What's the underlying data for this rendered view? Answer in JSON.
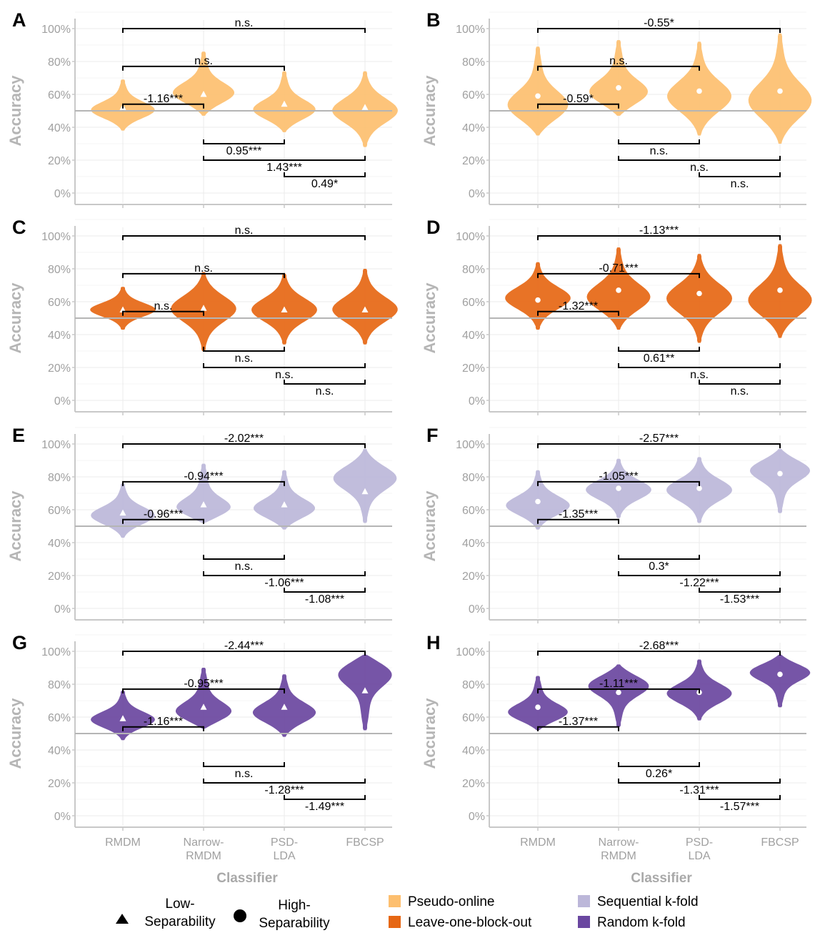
{
  "figure": {
    "y_axis_title": "Accuracy",
    "x_axis_title": "Classifier"
  },
  "legend": {
    "shapes": [
      {
        "shape": "triangle",
        "line1": "Low-",
        "line2": "Separability"
      },
      {
        "shape": "circle",
        "line1": "High-",
        "line2": "Separability"
      }
    ],
    "colors": [
      {
        "label": "Pseudo-online",
        "color": "#fdbf6f"
      },
      {
        "label": "Leave-one-block-out",
        "color": "#e66714"
      },
      {
        "label": "Sequential k-fold",
        "color": "#bcb7d9"
      },
      {
        "label": "Random k-fold",
        "color": "#6a47a0"
      }
    ]
  },
  "chart_data": [
    {
      "type": "violin",
      "panel": "A",
      "scheme": "Pseudo-online",
      "separability": "Low",
      "marker": "triangle",
      "categories": [
        "RMDM",
        "Narrow-RMDM",
        "PSD-LDA",
        "FBCSP"
      ],
      "yticks": [
        "0%",
        "20%",
        "40%",
        "60%",
        "80%",
        "100%"
      ],
      "ylim": [
        0,
        100
      ],
      "chance_line": 50,
      "distributions": [
        {
          "min": 38,
          "max": 69,
          "mode": 50,
          "median": 52
        },
        {
          "min": 47,
          "max": 86,
          "mode": 60,
          "median": 60
        },
        {
          "min": 37,
          "max": 74,
          "mode": 50,
          "median": 54
        },
        {
          "min": 28,
          "max": 74,
          "mode": 50,
          "median": 52
        }
      ],
      "comparisons": [
        {
          "from": "RMDM",
          "to": "FBCSP",
          "label": "n.s."
        },
        {
          "from": "RMDM",
          "to": "PSD-LDA",
          "label": "n.s."
        },
        {
          "from": "RMDM",
          "to": "Narrow-RMDM",
          "label": "-1.16***"
        },
        {
          "from": "Narrow-RMDM",
          "to": "PSD-LDA",
          "label": "0.95***"
        },
        {
          "from": "Narrow-RMDM",
          "to": "FBCSP",
          "label": "1.43***"
        },
        {
          "from": "PSD-LDA",
          "to": "FBCSP",
          "label": "0.49*"
        }
      ]
    },
    {
      "type": "violin",
      "panel": "B",
      "scheme": "Pseudo-online",
      "separability": "High",
      "marker": "circle",
      "categories": [
        "RMDM",
        "Narrow-RMDM",
        "PSD-LDA",
        "FBCSP"
      ],
      "yticks": [
        "0%",
        "20%",
        "40%",
        "60%",
        "80%",
        "100%"
      ],
      "ylim": [
        0,
        100
      ],
      "chance_line": 50,
      "distributions": [
        {
          "min": 35,
          "max": 89,
          "mode": 52,
          "median": 59
        },
        {
          "min": 47,
          "max": 93,
          "mode": 60,
          "median": 64
        },
        {
          "min": 35,
          "max": 92,
          "mode": 58,
          "median": 62
        },
        {
          "min": 30,
          "max": 97,
          "mode": 55,
          "median": 62
        }
      ],
      "comparisons": [
        {
          "from": "RMDM",
          "to": "FBCSP",
          "label": "-0.55*"
        },
        {
          "from": "RMDM",
          "to": "PSD-LDA",
          "label": "n.s."
        },
        {
          "from": "RMDM",
          "to": "Narrow-RMDM",
          "label": "-0.59*"
        },
        {
          "from": "Narrow-RMDM",
          "to": "PSD-LDA",
          "label": "n.s."
        },
        {
          "from": "Narrow-RMDM",
          "to": "FBCSP",
          "label": "n.s."
        },
        {
          "from": "PSD-LDA",
          "to": "FBCSP",
          "label": "n.s."
        }
      ]
    },
    {
      "type": "violin",
      "panel": "C",
      "scheme": "Leave-one-block-out",
      "separability": "Low",
      "marker": "triangle",
      "categories": [
        "RMDM",
        "Narrow-RMDM",
        "PSD-LDA",
        "FBCSP"
      ],
      "yticks": [
        "0%",
        "20%",
        "40%",
        "60%",
        "80%",
        "100%"
      ],
      "ylim": [
        0,
        100
      ],
      "chance_line": 50,
      "distributions": [
        {
          "min": 43,
          "max": 69,
          "mode": 55,
          "median": 55
        },
        {
          "min": 30,
          "max": 78,
          "mode": 56,
          "median": 56
        },
        {
          "min": 34,
          "max": 77,
          "mode": 55,
          "median": 55
        },
        {
          "min": 34,
          "max": 80,
          "mode": 55,
          "median": 55
        }
      ],
      "comparisons": [
        {
          "from": "RMDM",
          "to": "FBCSP",
          "label": "n.s."
        },
        {
          "from": "RMDM",
          "to": "PSD-LDA",
          "label": "n.s."
        },
        {
          "from": "RMDM",
          "to": "Narrow-RMDM",
          "label": "n.s."
        },
        {
          "from": "Narrow-RMDM",
          "to": "PSD-LDA",
          "label": "n.s."
        },
        {
          "from": "Narrow-RMDM",
          "to": "FBCSP",
          "label": "n.s."
        },
        {
          "from": "PSD-LDA",
          "to": "FBCSP",
          "label": "n.s."
        }
      ]
    },
    {
      "type": "violin",
      "panel": "D",
      "scheme": "Leave-one-block-out",
      "separability": "High",
      "marker": "circle",
      "categories": [
        "RMDM",
        "Narrow-RMDM",
        "PSD-LDA",
        "FBCSP"
      ],
      "yticks": [
        "0%",
        "20%",
        "40%",
        "60%",
        "80%",
        "100%"
      ],
      "ylim": [
        0,
        100
      ],
      "chance_line": 50,
      "distributions": [
        {
          "min": 43,
          "max": 84,
          "mode": 62,
          "median": 61
        },
        {
          "min": 43,
          "max": 93,
          "mode": 62,
          "median": 67
        },
        {
          "min": 35,
          "max": 89,
          "mode": 62,
          "median": 65
        },
        {
          "min": 38,
          "max": 95,
          "mode": 60,
          "median": 67
        }
      ],
      "comparisons": [
        {
          "from": "RMDM",
          "to": "FBCSP",
          "label": "-1.13***"
        },
        {
          "from": "RMDM",
          "to": "PSD-LDA",
          "label": "-0.71***"
        },
        {
          "from": "RMDM",
          "to": "Narrow-RMDM",
          "label": "-1.32***"
        },
        {
          "from": "Narrow-RMDM",
          "to": "PSD-LDA",
          "label": "0.61**"
        },
        {
          "from": "Narrow-RMDM",
          "to": "FBCSP",
          "label": "n.s."
        },
        {
          "from": "PSD-LDA",
          "to": "FBCSP",
          "label": "n.s."
        }
      ]
    },
    {
      "type": "violin",
      "panel": "E",
      "scheme": "Sequential k-fold",
      "separability": "Low",
      "marker": "triangle",
      "categories": [
        "RMDM",
        "Narrow-RMDM",
        "PSD-LDA",
        "FBCSP"
      ],
      "yticks": [
        "0%",
        "20%",
        "40%",
        "60%",
        "80%",
        "100%"
      ],
      "ylim": [
        0,
        100
      ],
      "chance_line": 50,
      "distributions": [
        {
          "min": 43,
          "max": 76,
          "mode": 56,
          "median": 58
        },
        {
          "min": 52,
          "max": 88,
          "mode": 60,
          "median": 63
        },
        {
          "min": 48,
          "max": 84,
          "mode": 60,
          "median": 63
        },
        {
          "min": 52,
          "max": 97,
          "mode": 80,
          "median": 71
        }
      ],
      "comparisons": [
        {
          "from": "RMDM",
          "to": "FBCSP",
          "label": "-2.02***"
        },
        {
          "from": "RMDM",
          "to": "PSD-LDA",
          "label": "-0.94***"
        },
        {
          "from": "RMDM",
          "to": "Narrow-RMDM",
          "label": "-0.96***"
        },
        {
          "from": "Narrow-RMDM",
          "to": "PSD-LDA",
          "label": "n.s."
        },
        {
          "from": "Narrow-RMDM",
          "to": "FBCSP",
          "label": "-1.06***"
        },
        {
          "from": "PSD-LDA",
          "to": "FBCSP",
          "label": "-1.08***"
        }
      ]
    },
    {
      "type": "violin",
      "panel": "F",
      "scheme": "Sequential k-fold",
      "separability": "High",
      "marker": "circle",
      "categories": [
        "RMDM",
        "Narrow-RMDM",
        "PSD-LDA",
        "FBCSP"
      ],
      "yticks": [
        "0%",
        "20%",
        "40%",
        "60%",
        "80%",
        "100%"
      ],
      "ylim": [
        0,
        100
      ],
      "chance_line": 50,
      "distributions": [
        {
          "min": 48,
          "max": 84,
          "mode": 62,
          "median": 65
        },
        {
          "min": 55,
          "max": 91,
          "mode": 72,
          "median": 73
        },
        {
          "min": 52,
          "max": 92,
          "mode": 72,
          "median": 73
        },
        {
          "min": 58,
          "max": 97,
          "mode": 85,
          "median": 82
        }
      ],
      "comparisons": [
        {
          "from": "RMDM",
          "to": "FBCSP",
          "label": "-2.57***"
        },
        {
          "from": "RMDM",
          "to": "PSD-LDA",
          "label": "-1.05***"
        },
        {
          "from": "RMDM",
          "to": "Narrow-RMDM",
          "label": "-1.35***"
        },
        {
          "from": "Narrow-RMDM",
          "to": "PSD-LDA",
          "label": "0.3*"
        },
        {
          "from": "Narrow-RMDM",
          "to": "FBCSP",
          "label": "-1.22***"
        },
        {
          "from": "PSD-LDA",
          "to": "FBCSP",
          "label": "-1.53***"
        }
      ]
    },
    {
      "type": "violin",
      "panel": "G",
      "scheme": "Random k-fold",
      "separability": "Low",
      "marker": "triangle",
      "categories": [
        "RMDM",
        "Narrow-RMDM",
        "PSD-LDA",
        "FBCSP"
      ],
      "yticks": [
        "0%",
        "20%",
        "40%",
        "60%",
        "80%",
        "100%"
      ],
      "ylim": [
        0,
        100
      ],
      "chance_line": 50,
      "distributions": [
        {
          "min": 46,
          "max": 76,
          "mode": 58,
          "median": 59
        },
        {
          "min": 53,
          "max": 90,
          "mode": 62,
          "median": 66
        },
        {
          "min": 48,
          "max": 86,
          "mode": 62,
          "median": 66
        },
        {
          "min": 52,
          "max": 98,
          "mode": 88,
          "median": 76
        }
      ],
      "comparisons": [
        {
          "from": "RMDM",
          "to": "FBCSP",
          "label": "-2.44***"
        },
        {
          "from": "RMDM",
          "to": "PSD-LDA",
          "label": "-0.95***"
        },
        {
          "from": "RMDM",
          "to": "Narrow-RMDM",
          "label": "-1.16***"
        },
        {
          "from": "Narrow-RMDM",
          "to": "PSD-LDA",
          "label": "n.s."
        },
        {
          "from": "Narrow-RMDM",
          "to": "FBCSP",
          "label": "-1.28***"
        },
        {
          "from": "PSD-LDA",
          "to": "FBCSP",
          "label": "-1.49***"
        }
      ]
    },
    {
      "type": "violin",
      "panel": "H",
      "scheme": "Random k-fold",
      "separability": "High",
      "marker": "circle",
      "categories": [
        "RMDM",
        "Narrow-RMDM",
        "PSD-LDA",
        "FBCSP"
      ],
      "yticks": [
        "0%",
        "20%",
        "40%",
        "60%",
        "80%",
        "100%"
      ],
      "ylim": [
        0,
        100
      ],
      "chance_line": 50,
      "distributions": [
        {
          "min": 52,
          "max": 85,
          "mode": 62,
          "median": 66
        },
        {
          "min": 54,
          "max": 92,
          "mode": 80,
          "median": 75
        },
        {
          "min": 58,
          "max": 95,
          "mode": 74,
          "median": 75
        },
        {
          "min": 66,
          "max": 98,
          "mode": 88,
          "median": 86
        }
      ],
      "comparisons": [
        {
          "from": "RMDM",
          "to": "FBCSP",
          "label": "-2.68***"
        },
        {
          "from": "RMDM",
          "to": "PSD-LDA",
          "label": "-1.11***"
        },
        {
          "from": "RMDM",
          "to": "Narrow-RMDM",
          "label": "-1.37***"
        },
        {
          "from": "Narrow-RMDM",
          "to": "PSD-LDA",
          "label": "0.26*"
        },
        {
          "from": "Narrow-RMDM",
          "to": "FBCSP",
          "label": "-1.31***"
        },
        {
          "from": "PSD-LDA",
          "to": "FBCSP",
          "label": "-1.57***"
        }
      ]
    }
  ]
}
